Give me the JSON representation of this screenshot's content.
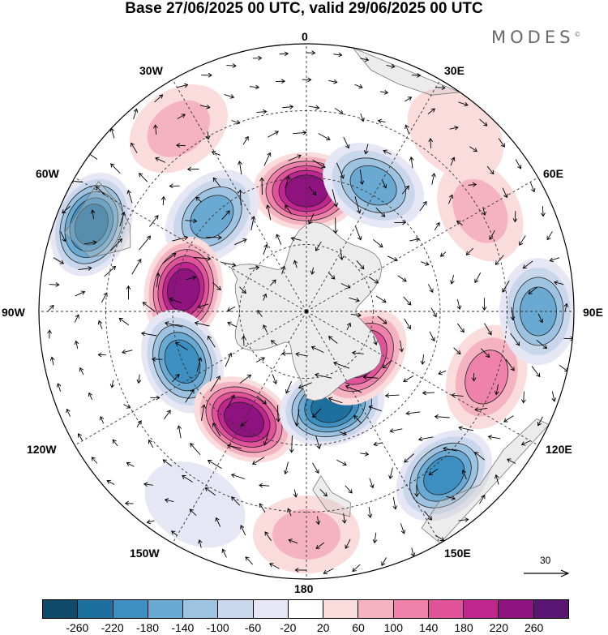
{
  "title": "Base 27/06/2025 00 UTC, valid 29/06/2025 00 UTC",
  "brand": "MODES",
  "brand_mark": "©",
  "longitude_labels": {
    "lon_0": "0",
    "lon_30e": "30E",
    "lon_60e": "60E",
    "lon_90e": "90E",
    "lon_120e": "120E",
    "lon_150e": "150E",
    "lon_180": "180",
    "lon_150w": "150W",
    "lon_120w": "120W",
    "lon_90w": "90W",
    "lon_60w": "60W",
    "lon_30w": "30W"
  },
  "vector_reference": "30",
  "colorbar": {
    "colors": [
      "#0f4a6b",
      "#1d6f9e",
      "#3c8fc0",
      "#6aaad2",
      "#9ec3e0",
      "#c9d7ec",
      "#e6e6f4",
      "#ffffff",
      "#fbdcdc",
      "#f5b3c2",
      "#ef82aa",
      "#e0529a",
      "#c0268f",
      "#8e137f",
      "#5a1572"
    ],
    "ticks": [
      "-260",
      "-220",
      "-180",
      "-140",
      "-100",
      "-60",
      "-20",
      "20",
      "60",
      "100",
      "140",
      "180",
      "220",
      "260"
    ]
  },
  "anomaly_centers": [
    {
      "name": "positive-anomaly-0e",
      "lon": 0,
      "colat_deg": 27,
      "value": 260
    },
    {
      "name": "negative-anomaly-30e",
      "lon": 28,
      "colat_deg": 32,
      "value": -180
    },
    {
      "name": "negative-anomaly-60w",
      "lon": -68,
      "colat_deg": 52,
      "value": -240
    },
    {
      "name": "negative-anomaly-45w",
      "lon": -45,
      "colat_deg": 30,
      "value": -160
    },
    {
      "name": "positive-anomaly-30w",
      "lon": -35,
      "colat_deg": 50,
      "value": 100
    },
    {
      "name": "positive-anomaly-80w",
      "lon": -80,
      "colat_deg": 28,
      "value": 240
    },
    {
      "name": "negative-anomaly-110w",
      "lon": -112,
      "colat_deg": 30,
      "value": -200
    },
    {
      "name": "positive-anomaly-150w",
      "lon": -150,
      "colat_deg": 28,
      "value": 260
    },
    {
      "name": "negative-anomaly-170e",
      "lon": 165,
      "colat_deg": 22,
      "value": -240
    },
    {
      "name": "positive-anomaly-130e",
      "lon": 130,
      "colat_deg": 16,
      "value": 200
    },
    {
      "name": "positive-anomaly-110e",
      "lon": 110,
      "colat_deg": 43,
      "value": 120
    },
    {
      "name": "negative-anomaly-140e",
      "lon": 140,
      "colat_deg": 48,
      "value": -200
    },
    {
      "name": "negative-anomaly-90e",
      "lon": 90,
      "colat_deg": 52,
      "value": -160
    },
    {
      "name": "positive-anomaly-60e",
      "lon": 60,
      "colat_deg": 45,
      "value": 80
    },
    {
      "name": "positive-anomaly-180",
      "lon": 180,
      "colat_deg": 50,
      "value": 100
    },
    {
      "name": "negative-anomaly-150w-outer",
      "lon": -150,
      "colat_deg": 50,
      "value": -60
    },
    {
      "name": "positive-anomaly-0e-outer",
      "lon": 40,
      "colat_deg": 52,
      "value": 60
    }
  ]
}
